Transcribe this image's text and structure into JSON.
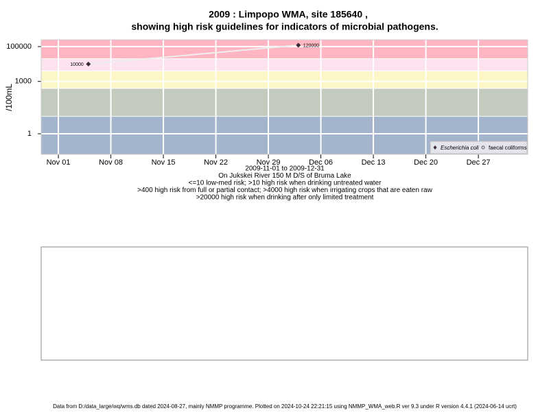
{
  "chart_data": {
    "type": "line",
    "title": [
      "2009 : Limpopo WMA, site 185640 ,",
      "showing high risk guidelines for indicators of microbial pathogens."
    ],
    "ylabel": "/100mL",
    "xlabel": [
      "2009-11-01 to 2009-12-31",
      "On Jukskei River 150 M D/S of Bruma Lake",
      "<=10 low-med risk; >10 high risk when drinking untreated water",
      ">400 high risk from full or partial contact; >4000 high risk when irrigating crops that are eaten raw",
      ">20000 high risk when drinking after only limited treatment"
    ],
    "log_y": true,
    "grid": true,
    "legend": "lower right",
    "ylim": [
      0.066,
      245000
    ],
    "yticks": [
      1,
      1000,
      100000
    ],
    "xlim": [
      "2009-10-29T17:00",
      "2010-01-02T14:00"
    ],
    "xticks": [
      {
        "value": "2009-11-01",
        "label": "Nov 01"
      },
      {
        "value": "2009-11-08",
        "label": "Nov 08"
      },
      {
        "value": "2009-11-15",
        "label": "Nov 15"
      },
      {
        "value": "2009-11-22",
        "label": "Nov 22"
      },
      {
        "value": "2009-11-29",
        "label": "Nov 29"
      },
      {
        "value": "2009-12-06",
        "label": "Dec 06"
      },
      {
        "value": "2009-12-13",
        "label": "Dec 13"
      },
      {
        "value": "2009-12-20",
        "label": "Dec 20"
      },
      {
        "value": "2009-12-27",
        "label": "Dec 27"
      }
    ],
    "thresholds": [
      10,
      400,
      4000,
      20000
    ],
    "band_colors": [
      "#a3b4cc",
      "#c3cbbf",
      "#fdf6c6",
      "#fde3ef",
      "#ffb6c2"
    ],
    "series": [
      {
        "name": "Escherichia coli",
        "color": "#3a2a3a",
        "marker": "diamond",
        "x": [
          "2009-11-05",
          "2009-12-03"
        ],
        "values": [
          10000,
          120000
        ]
      },
      {
        "name": "faecal coliforms",
        "color": "#555555",
        "marker": "circle",
        "x": [],
        "values": []
      }
    ],
    "footer": "Data from D:/data_large/wq/wms.db dated 2024-08-27, mainly NMMP programme. Plotted on 2024-10-24 22:21:15 using NMMP_WMA_web.R ver 9.3 under R version 4.4.1 (2024-06-14 ucrt)"
  }
}
